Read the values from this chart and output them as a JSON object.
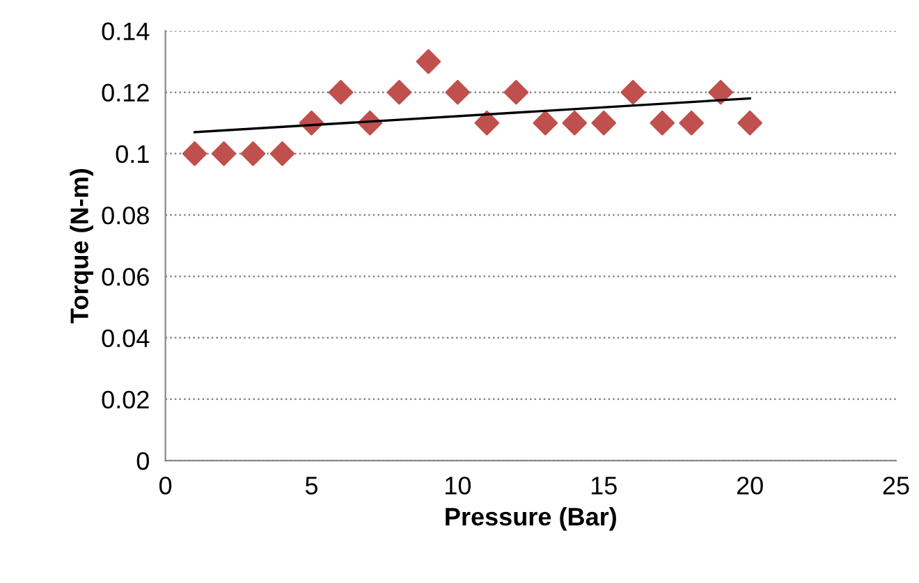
{
  "chart_data": {
    "type": "scatter",
    "xlabel": "Pressure (Bar)",
    "ylabel": "Torque (N-m)",
    "grid": "y",
    "xlim": [
      0,
      25
    ],
    "xticks": [
      0,
      5,
      10,
      15,
      20,
      25
    ],
    "ylim": [
      0,
      0.14
    ],
    "yticks": [
      0,
      0.02,
      0.04,
      0.06,
      0.08,
      0.1,
      0.12,
      0.14
    ],
    "series": [
      {
        "marker": "diamond",
        "color": "#c0504d",
        "x": [
          1,
          2,
          3,
          4,
          5,
          6,
          7,
          8,
          9,
          10,
          11,
          12,
          13,
          14,
          15,
          16,
          17,
          18,
          19,
          20
        ],
        "values": [
          0.1,
          0.1,
          0.1,
          0.1,
          0.11,
          0.12,
          0.11,
          0.12,
          0.13,
          0.12,
          0.11,
          0.12,
          0.11,
          0.11,
          0.11,
          0.12,
          0.11,
          0.11,
          0.12,
          0.11
        ]
      },
      {
        "type": "line",
        "marker": "none",
        "color": "#000000",
        "x": [
          1,
          20
        ],
        "values": [
          0.107,
          0.118
        ]
      }
    ]
  }
}
